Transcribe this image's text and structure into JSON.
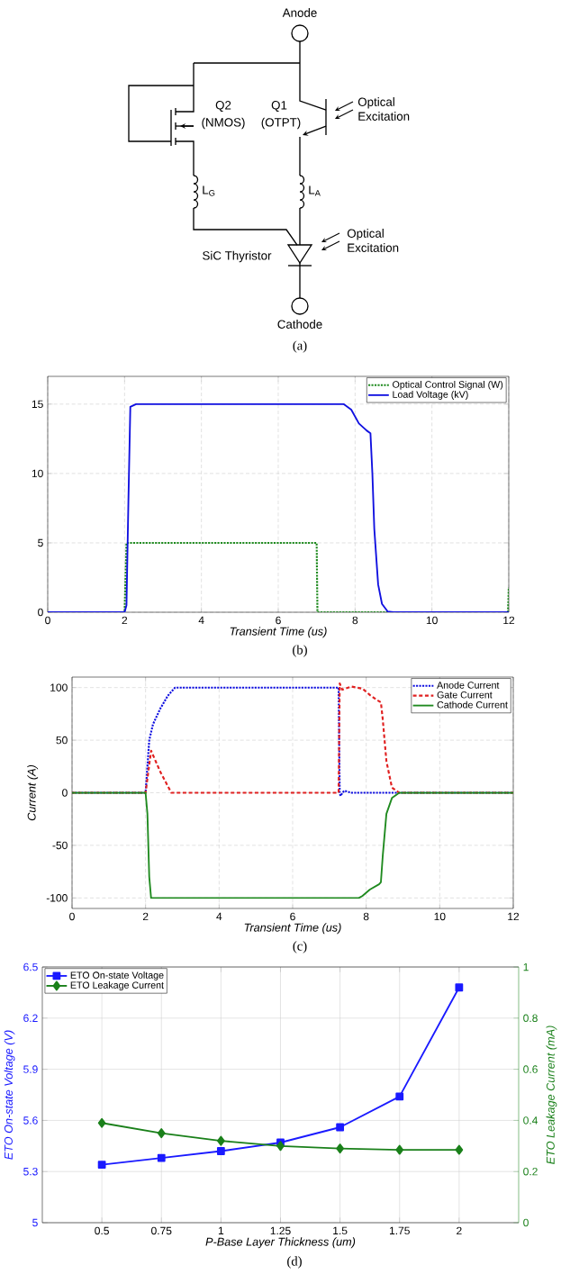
{
  "chart_data": [
    {
      "type": "other",
      "annotations": [
        "Anode",
        "Q2",
        "(NMOS)",
        "Q1",
        "(OTPT)",
        "Optical Excitation",
        "L$_{G}$",
        "L$_{A}$",
        "Optical Excitation",
        "SiC Thyristor",
        "Cathode",
        "(a)"
      ]
    },
    {
      "type": "line",
      "xlabel": "Transient Time (us)",
      "annotations": [
        "(b)"
      ],
      "xlim": [
        0,
        12
      ],
      "ylim": [
        0,
        17
      ],
      "xticks": [
        0,
        2,
        4,
        6,
        8,
        10,
        12
      ],
      "yticks": [
        0,
        5,
        10,
        15
      ],
      "grid": true,
      "legend": "top right",
      "series": [
        {
          "name": "Optical Control Signal (W)",
          "color": "#1f8a1f",
          "line_style": "dotted",
          "x": [
            0,
            2,
            2.05,
            7,
            7.02,
            11.98,
            12
          ],
          "values": [
            0,
            0,
            5,
            5,
            0,
            0,
            1.8
          ]
        },
        {
          "name": "Load Voltage (kV)",
          "color": "#1010e0",
          "line_style": "solid",
          "x": [
            0,
            2,
            2.05,
            2.1,
            2.15,
            2.3,
            7.7,
            7.9,
            8.1,
            8.3,
            8.4,
            8.45,
            8.5,
            8.6,
            8.7,
            8.85,
            9,
            12
          ],
          "values": [
            0,
            0,
            0.5,
            8,
            14.8,
            15,
            15,
            14.6,
            13.6,
            13.1,
            12.9,
            10,
            6,
            2,
            0.6,
            0.05,
            0,
            0
          ]
        }
      ]
    },
    {
      "type": "line",
      "xlabel": "Transient Time (us)",
      "ylabel": "Current (A)",
      "annotations": [
        "(c)"
      ],
      "xlim": [
        0,
        12
      ],
      "ylim": [
        -110,
        110
      ],
      "xticks": [
        0,
        2,
        4,
        6,
        8,
        10,
        12
      ],
      "yticks": [
        -100,
        -50,
        0,
        50,
        100
      ],
      "grid": true,
      "legend": "top right",
      "series": [
        {
          "name": "Anode Current",
          "color": "#1010e0",
          "line_style": "dotted",
          "x": [
            0,
            2,
            2.1,
            2.2,
            2.4,
            2.6,
            2.8,
            7.25,
            7.28,
            7.3,
            7.4,
            7.6,
            12
          ],
          "values": [
            0,
            0,
            50,
            65,
            80,
            92,
            100,
            100,
            0,
            -3,
            2,
            0,
            0
          ]
        },
        {
          "name": "Gate Current",
          "color": "#e02020",
          "line_style": "dashed",
          "x": [
            0,
            2,
            2.15,
            2.4,
            2.7,
            7.25,
            7.28,
            7.35,
            7.6,
            7.9,
            8.1,
            8.3,
            8.4,
            8.45,
            8.55,
            8.7,
            8.9,
            12
          ],
          "values": [
            0,
            0,
            40,
            20,
            0,
            0,
            104,
            98,
            101,
            99,
            93,
            88,
            86,
            70,
            30,
            5,
            0,
            0
          ]
        },
        {
          "name": "Cathode Current",
          "color": "#1f8a1f",
          "line_style": "solid",
          "x": [
            0,
            2,
            2.05,
            2.1,
            2.15,
            7.8,
            7.9,
            8.1,
            8.35,
            8.4,
            8.45,
            8.55,
            8.7,
            8.9,
            12
          ],
          "values": [
            0,
            0,
            -20,
            -80,
            -100,
            -100,
            -98,
            -92,
            -87,
            -85,
            -60,
            -20,
            -5,
            0,
            0
          ]
        }
      ]
    },
    {
      "type": "line",
      "xlabel": "P-Base Layer Thickness (um)",
      "ylabel": "ETO On-state Voltage (V)",
      "y2label": "ETO Leakage Current (mA)",
      "annotations": [
        "(d)"
      ],
      "xlim": [
        0.25,
        2.25
      ],
      "ylim": [
        5,
        6.5
      ],
      "y2lim": [
        0,
        1
      ],
      "xticks": [
        0.5,
        0.75,
        1,
        1.25,
        1.5,
        1.75,
        2
      ],
      "yticks": [
        5,
        5.3,
        5.6,
        5.9,
        6.2,
        6.5
      ],
      "y2ticks": [
        0,
        0.2,
        0.4,
        0.6,
        0.8,
        1
      ],
      "grid": true,
      "legend": "top left",
      "series": [
        {
          "name": "ETO On-state Voltage",
          "color": "#1a1aff",
          "marker": "square",
          "line_style": "solid",
          "x": [
            0.5,
            0.75,
            1,
            1.25,
            1.5,
            1.75,
            2
          ],
          "values": [
            5.34,
            5.38,
            5.42,
            5.47,
            5.56,
            5.74,
            6.38
          ]
        },
        {
          "name": "ETO Leakage Current",
          "color": "#1a801a",
          "marker": "diamond",
          "line_style": "solid",
          "axis": "y2",
          "x": [
            0.5,
            0.75,
            1,
            1.25,
            1.5,
            1.75,
            2
          ],
          "values": [
            0.39,
            0.35,
            0.32,
            0.3,
            0.29,
            0.285,
            0.285
          ]
        }
      ]
    }
  ]
}
